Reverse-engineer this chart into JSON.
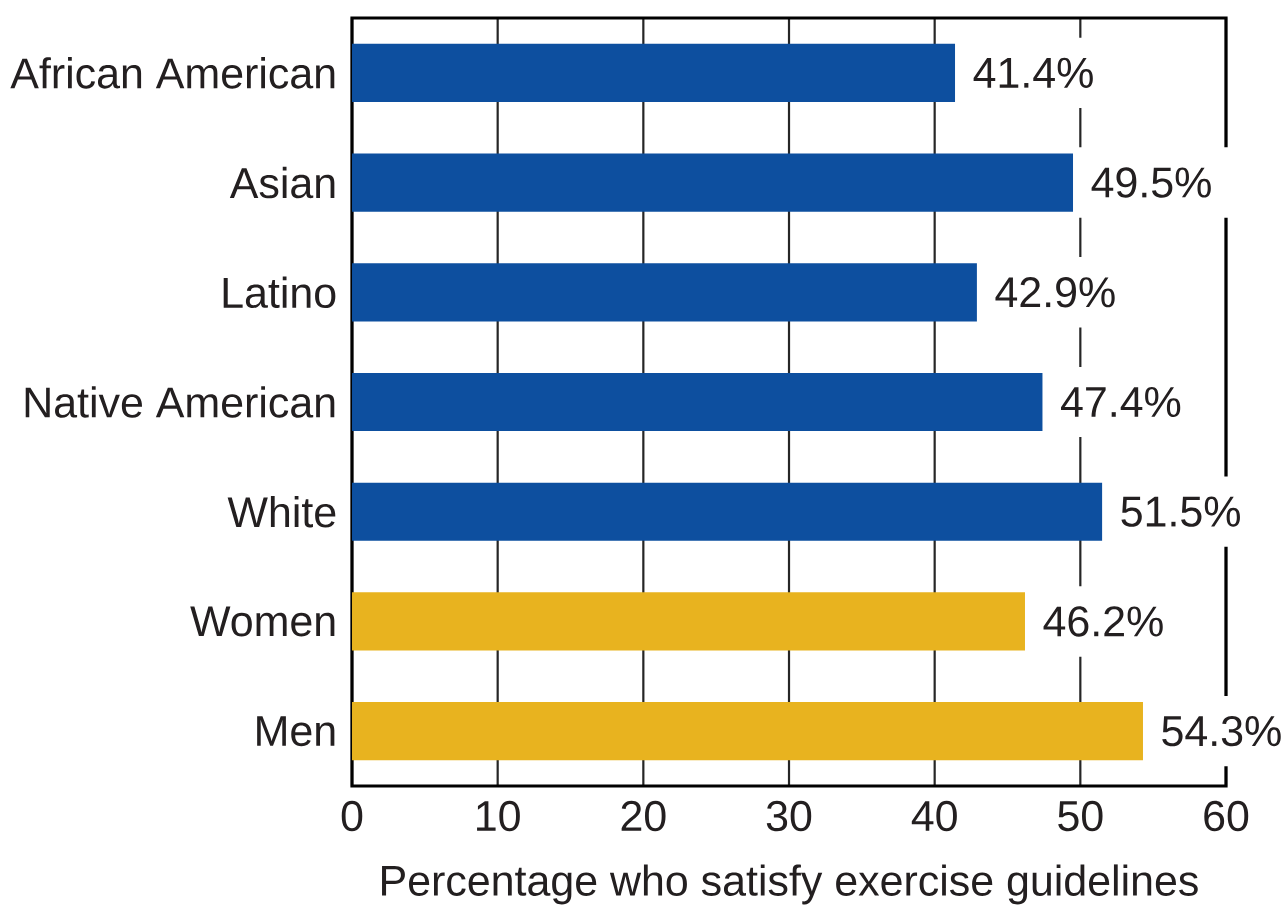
{
  "chart_data": {
    "type": "bar",
    "orientation": "horizontal",
    "categories": [
      "African American",
      "Asian",
      "Latino",
      "Native American",
      "White",
      "Women",
      "Men"
    ],
    "values": [
      41.4,
      49.5,
      42.9,
      47.4,
      51.5,
      46.2,
      54.3
    ],
    "colors": [
      "#0d4f9f",
      "#0d4f9f",
      "#0d4f9f",
      "#0d4f9f",
      "#0d4f9f",
      "#e8b31f",
      "#e8b31f"
    ],
    "value_labels": [
      "41.4%",
      "49.5%",
      "42.9%",
      "47.4%",
      "51.5%",
      "46.2%",
      "54.3%"
    ],
    "xlabel": "Percentage who satisfy exercise guidelines",
    "xlim": [
      0,
      60
    ],
    "xticks": [
      0,
      10,
      20,
      30,
      40,
      50,
      60
    ],
    "grid": "x"
  }
}
